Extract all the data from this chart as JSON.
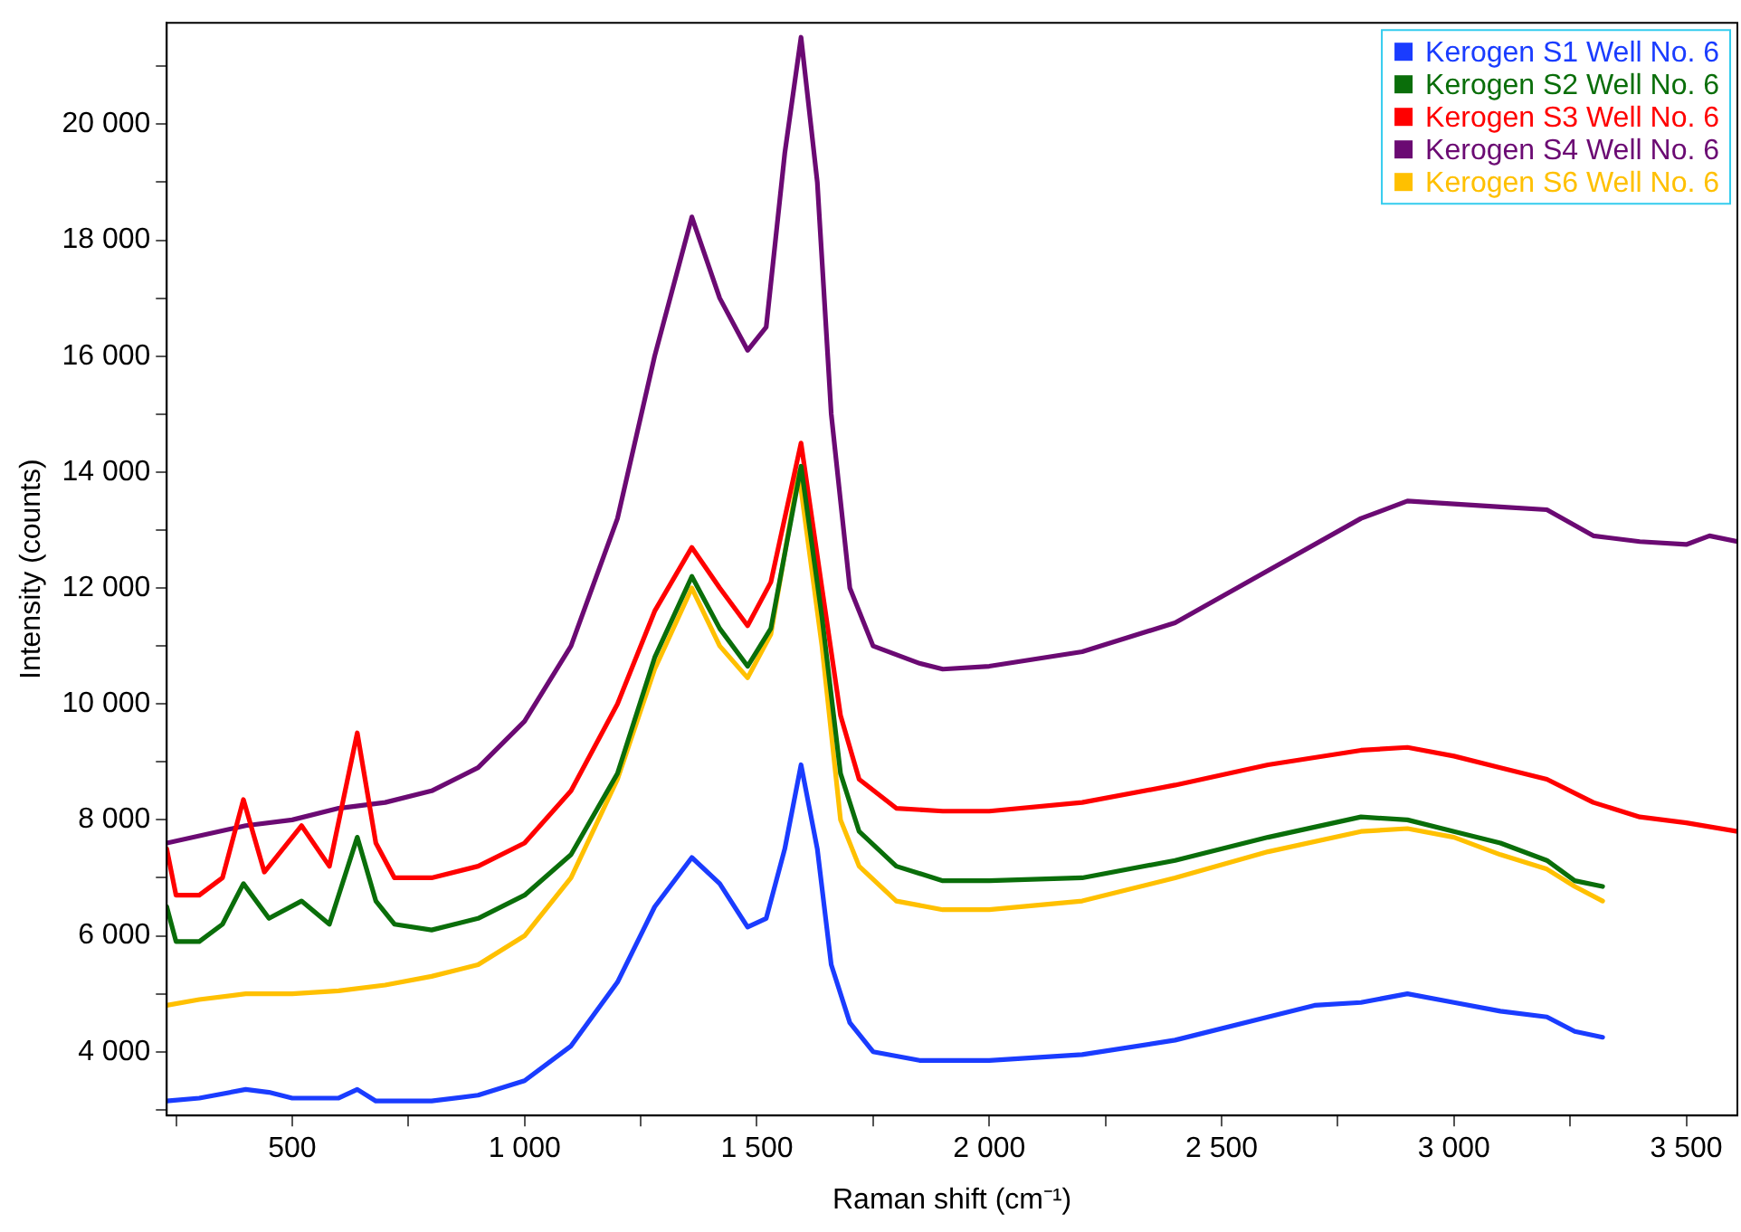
{
  "chart_data": {
    "type": "line",
    "xlabel": "Raman shift (cm⁻¹)",
    "ylabel": "Intensity (counts)",
    "xlim": [
      230,
      3610
    ],
    "xticks": [
      {
        "value": 250,
        "label": null
      },
      {
        "value": 500,
        "label": "500"
      },
      {
        "value": 750,
        "label": null
      },
      {
        "value": 1000,
        "label": "1 000"
      },
      {
        "value": 1250,
        "label": null
      },
      {
        "value": 1500,
        "label": "1 500"
      },
      {
        "value": 1750,
        "label": null
      },
      {
        "value": 2000,
        "label": "2 000"
      },
      {
        "value": 2250,
        "label": null
      },
      {
        "value": 2500,
        "label": "2 500"
      },
      {
        "value": 2750,
        "label": null
      },
      {
        "value": 3000,
        "label": "3 000"
      },
      {
        "value": 3250,
        "label": null
      },
      {
        "value": 3500,
        "label": "3 500"
      }
    ],
    "ylim": [
      2900,
      21750
    ],
    "yticks": [
      {
        "value": 3000,
        "label": null
      },
      {
        "value": 4000,
        "label": "4 000"
      },
      {
        "value": 5000,
        "label": null
      },
      {
        "value": 6000,
        "label": "6 000"
      },
      {
        "value": 7000,
        "label": null
      },
      {
        "value": 8000,
        "label": "8 000"
      },
      {
        "value": 9000,
        "label": null
      },
      {
        "value": 10000,
        "label": "10 000"
      },
      {
        "value": 11000,
        "label": null
      },
      {
        "value": 12000,
        "label": "12 000"
      },
      {
        "value": 13000,
        "label": null
      },
      {
        "value": 14000,
        "label": "14 000"
      },
      {
        "value": 15000,
        "label": null
      },
      {
        "value": 16000,
        "label": "16 000"
      },
      {
        "value": 17000,
        "label": null
      },
      {
        "value": 18000,
        "label": "18 000"
      },
      {
        "value": 19000,
        "label": null
      },
      {
        "value": 20000,
        "label": "20 000"
      },
      {
        "value": 21000,
        "label": null
      }
    ],
    "grid": false,
    "legend": "top right",
    "marker": "none",
    "line_style": "solid",
    "series": [
      {
        "name": "Kerogen S1 Well No. 6",
        "color": "#1a3cff",
        "x": [
          230,
          300,
          400,
          450,
          500,
          600,
          640,
          680,
          800,
          900,
          1000,
          1100,
          1200,
          1280,
          1360,
          1420,
          1480,
          1520,
          1560,
          1595,
          1630,
          1660,
          1700,
          1750,
          1850,
          2000,
          2200,
          2400,
          2600,
          2700,
          2800,
          2900,
          3000,
          3100,
          3200,
          3260,
          3320
        ],
        "values": [
          3150,
          3200,
          3350,
          3300,
          3200,
          3200,
          3350,
          3150,
          3150,
          3250,
          3500,
          4100,
          5200,
          6500,
          7350,
          6900,
          6150,
          6300,
          7500,
          8950,
          7500,
          5500,
          4500,
          4000,
          3850,
          3850,
          3950,
          4200,
          4600,
          4800,
          4850,
          5000,
          4850,
          4700,
          4600,
          4350,
          4250
        ]
      },
      {
        "name": "Kerogen S2 Well No. 6",
        "color": "#0a6e0a",
        "x": [
          230,
          250,
          300,
          350,
          395,
          450,
          520,
          580,
          640,
          680,
          720,
          800,
          900,
          1000,
          1100,
          1200,
          1280,
          1360,
          1420,
          1480,
          1530,
          1595,
          1640,
          1680,
          1720,
          1800,
          1900,
          2000,
          2200,
          2400,
          2600,
          2800,
          2900,
          3000,
          3100,
          3200,
          3260,
          3320
        ],
        "values": [
          6500,
          5900,
          5900,
          6200,
          6900,
          6300,
          6600,
          6200,
          7700,
          6600,
          6200,
          6100,
          6300,
          6700,
          7400,
          8800,
          10800,
          12200,
          11300,
          10650,
          11300,
          14100,
          11500,
          8800,
          7800,
          7200,
          6950,
          6950,
          7000,
          7300,
          7700,
          8050,
          8000,
          7800,
          7600,
          7300,
          6950,
          6850
        ]
      },
      {
        "name": "Kerogen S3 Well No. 6",
        "color": "#ff0000",
        "x": [
          230,
          250,
          300,
          350,
          395,
          440,
          520,
          580,
          640,
          680,
          720,
          800,
          900,
          1000,
          1100,
          1200,
          1280,
          1360,
          1420,
          1480,
          1530,
          1595,
          1640,
          1680,
          1720,
          1800,
          1900,
          2000,
          2200,
          2400,
          2600,
          2800,
          2900,
          3000,
          3100,
          3200,
          3300,
          3400,
          3500,
          3610
        ],
        "values": [
          7500,
          6700,
          6700,
          7000,
          8350,
          7100,
          7900,
          7200,
          9500,
          7600,
          7000,
          7000,
          7200,
          7600,
          8500,
          10000,
          11600,
          12700,
          12000,
          11350,
          12100,
          14500,
          12000,
          9800,
          8700,
          8200,
          8150,
          8150,
          8300,
          8600,
          8950,
          9200,
          9250,
          9100,
          8900,
          8700,
          8300,
          8050,
          7950,
          7800
        ]
      },
      {
        "name": "Kerogen S4 Well No. 6",
        "color": "#6b0a73",
        "x": [
          230,
          400,
          500,
          600,
          700,
          800,
          900,
          1000,
          1100,
          1200,
          1280,
          1360,
          1420,
          1480,
          1520,
          1560,
          1595,
          1630,
          1660,
          1700,
          1750,
          1850,
          1900,
          2000,
          2200,
          2400,
          2600,
          2800,
          2900,
          3000,
          3100,
          3200,
          3300,
          3400,
          3500,
          3550,
          3610
        ],
        "values": [
          7600,
          7900,
          8000,
          8200,
          8300,
          8500,
          8900,
          9700,
          11000,
          13200,
          16000,
          18400,
          17000,
          16100,
          16500,
          19500,
          21500,
          19000,
          15000,
          12000,
          11000,
          10700,
          10600,
          10650,
          10900,
          11400,
          12300,
          13200,
          13500,
          13450,
          13400,
          13350,
          12900,
          12800,
          12750,
          12900,
          12800
        ]
      },
      {
        "name": "Kerogen S6 Well No. 6",
        "color": "#ffc000",
        "x": [
          230,
          300,
          400,
          500,
          600,
          700,
          800,
          900,
          1000,
          1100,
          1200,
          1280,
          1360,
          1420,
          1480,
          1530,
          1590,
          1640,
          1680,
          1720,
          1800,
          1900,
          2000,
          2200,
          2400,
          2600,
          2800,
          2900,
          3000,
          3100,
          3200,
          3260,
          3320
        ],
        "values": [
          4800,
          4900,
          5000,
          5000,
          5050,
          5150,
          5300,
          5500,
          6000,
          7000,
          8700,
          10600,
          12000,
          11000,
          10450,
          11200,
          14000,
          11000,
          8000,
          7200,
          6600,
          6450,
          6450,
          6600,
          7000,
          7450,
          7800,
          7850,
          7700,
          7400,
          7150,
          6850,
          6600
        ]
      }
    ]
  }
}
